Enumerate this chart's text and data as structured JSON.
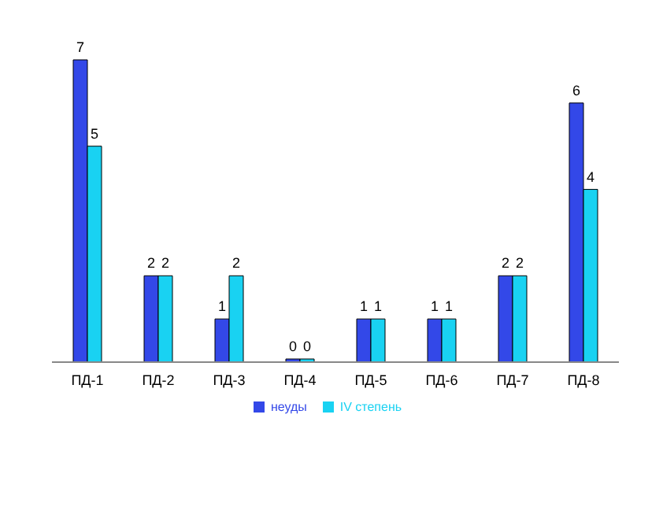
{
  "chart_data": {
    "type": "bar",
    "categories": [
      "ПД-1",
      "ПД-2",
      "ПД-3",
      "ПД-4",
      "ПД-5",
      "ПД-6",
      "ПД-7",
      "ПД-8"
    ],
    "series": [
      {
        "name": "неуды",
        "color": "#3348e8",
        "values": [
          7,
          2,
          1,
          0,
          1,
          1,
          2,
          6
        ]
      },
      {
        "name": "IV степень",
        "color": "#19d2f2",
        "values": [
          5,
          2,
          2,
          0,
          1,
          1,
          2,
          4
        ]
      }
    ],
    "data_labels": true,
    "legend": "bottom",
    "grid": false
  }
}
